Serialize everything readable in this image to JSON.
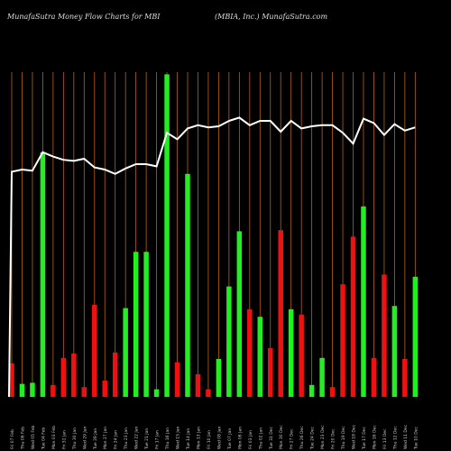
{
  "header": {
    "left": "MunafaSutra  Money Flow  Charts for MBI",
    "right": "(MBIA, Inc.) MunafaSutra.com"
  },
  "colors": {
    "background": "#000000",
    "grid": "#b8621a",
    "up": "#22ee22",
    "down": "#ee1111",
    "price_line": "#ffffff",
    "tick_text": "#cccccc"
  },
  "chart_data": {
    "type": "bar",
    "title": "MunafaSutra  Money Flow  Charts for MBI",
    "subtitle": "(MBIA, Inc.) MunafaSutra.com",
    "grid": true,
    "categories": [
      "Fri 07 Feb",
      "Thu 06 Feb",
      "Wed 05 Feb",
      "Tue 04 Feb",
      "Mon 03 Feb",
      "Fri 31 Jan",
      "Thu 30 Jan",
      "Wed 29 Jan",
      "Tue 28 Jan",
      "Mon 27 Jan",
      "Fri 24 Jan",
      "Thu 23 Jan",
      "Wed 22 Jan",
      "Tue 21 Jan",
      "Fri 17 Jan",
      "Thu 16 Jan",
      "Wed 15 Jan",
      "Tue 14 Jan",
      "Mon 13 Jan",
      "Fri 10 Jan",
      "Wed 08 Jan",
      "Tue 07 Jan",
      "Mon 06 Jan",
      "Fri 03 Jan",
      "Thu 02 Jan",
      "Tue 31 Dec",
      "Mon 30 Dec",
      "Fri 27 Dec",
      "Thu 26 Dec",
      "Tue 24 Dec",
      "Mon 23 Dec",
      "Fri 20 Dec",
      "Thu 19 Dec",
      "Wed 18 Dec",
      "Tue 17 Dec",
      "Mon 16 Dec",
      "Fri 13 Dec",
      "Thu 12 Dec",
      "Wed 11 Dec",
      "Tue 10 Dec"
    ],
    "bars": [
      {
        "value": 31,
        "dir": "down"
      },
      {
        "value": 12,
        "dir": "up"
      },
      {
        "value": 13,
        "dir": "up"
      },
      {
        "value": 226,
        "dir": "up"
      },
      {
        "value": 11,
        "dir": "down"
      },
      {
        "value": 36,
        "dir": "down"
      },
      {
        "value": 40,
        "dir": "down"
      },
      {
        "value": 9,
        "dir": "down"
      },
      {
        "value": 85,
        "dir": "down"
      },
      {
        "value": 15,
        "dir": "down"
      },
      {
        "value": 41,
        "dir": "down"
      },
      {
        "value": 82,
        "dir": "up"
      },
      {
        "value": 134,
        "dir": "up"
      },
      {
        "value": 134,
        "dir": "up"
      },
      {
        "value": 7,
        "dir": "up"
      },
      {
        "value": 298,
        "dir": "up"
      },
      {
        "value": 32,
        "dir": "down"
      },
      {
        "value": 206,
        "dir": "up"
      },
      {
        "value": 21,
        "dir": "down"
      },
      {
        "value": 7,
        "dir": "down"
      },
      {
        "value": 35,
        "dir": "up"
      },
      {
        "value": 102,
        "dir": "up"
      },
      {
        "value": 153,
        "dir": "up"
      },
      {
        "value": 81,
        "dir": "down"
      },
      {
        "value": 74,
        "dir": "up"
      },
      {
        "value": 45,
        "dir": "down"
      },
      {
        "value": 154,
        "dir": "down"
      },
      {
        "value": 81,
        "dir": "up"
      },
      {
        "value": 76,
        "dir": "down"
      },
      {
        "value": 11,
        "dir": "up"
      },
      {
        "value": 36,
        "dir": "up"
      },
      {
        "value": 9,
        "dir": "down"
      },
      {
        "value": 104,
        "dir": "down"
      },
      {
        "value": 148,
        "dir": "down"
      },
      {
        "value": 176,
        "dir": "up"
      },
      {
        "value": 36,
        "dir": "down"
      },
      {
        "value": 113,
        "dir": "down"
      },
      {
        "value": 84,
        "dir": "up"
      },
      {
        "value": 35,
        "dir": "down"
      },
      {
        "value": 111,
        "dir": "up"
      }
    ],
    "price_line": [
      208,
      210,
      209,
      226,
      222,
      219,
      218,
      220,
      212,
      210,
      206,
      211,
      215,
      215,
      213,
      244,
      238,
      248,
      251,
      249,
      250,
      255,
      258,
      251,
      255,
      255,
      245,
      255,
      248,
      250,
      251,
      251,
      244,
      234,
      257,
      253,
      242,
      252,
      246,
      249
    ]
  }
}
